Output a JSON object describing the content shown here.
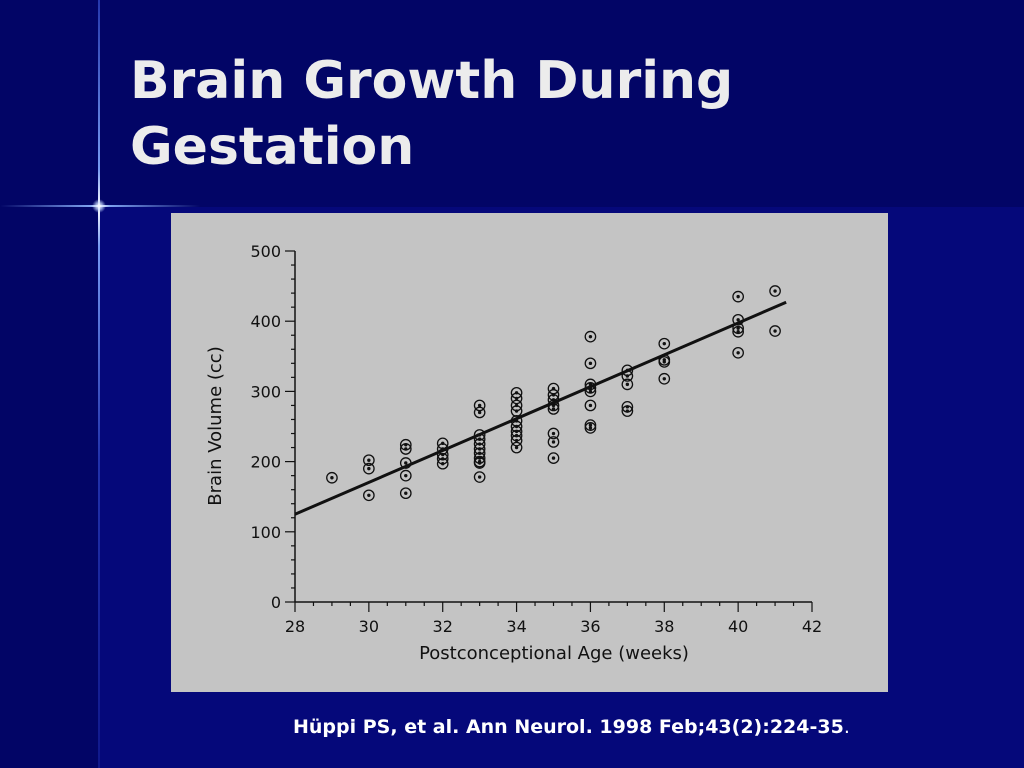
{
  "slide": {
    "title_line1": "Brain Growth During",
    "title_line2": "Gestation",
    "citation": "Hüppi PS, et al. Ann Neurol. 1998 Feb;43(2):224-35",
    "citation_end": "."
  },
  "colors": {
    "background": "#05087a",
    "background_dark": "#020566",
    "figure_background": "#c4c4c4",
    "title_text": "#ececec",
    "ink": "#111111"
  },
  "chart_data": {
    "type": "scatter",
    "title": "",
    "xlabel": "Postconceptional Age (weeks)",
    "ylabel": "Brain Volume (cc)",
    "xlim": [
      28,
      42
    ],
    "ylim": [
      0,
      500
    ],
    "xticks": [
      28,
      30,
      32,
      34,
      36,
      38,
      40,
      42
    ],
    "yticks": [
      0,
      100,
      200,
      300,
      400,
      500
    ],
    "grid": false,
    "legend": "none",
    "points": [
      [
        29,
        177
      ],
      [
        30,
        202
      ],
      [
        30,
        190
      ],
      [
        30,
        152
      ],
      [
        31,
        224
      ],
      [
        31,
        218
      ],
      [
        31,
        198
      ],
      [
        31,
        180
      ],
      [
        31,
        155
      ],
      [
        32,
        226
      ],
      [
        32,
        218
      ],
      [
        32,
        210
      ],
      [
        32,
        204
      ],
      [
        32,
        197
      ],
      [
        33,
        280
      ],
      [
        33,
        270
      ],
      [
        33,
        238
      ],
      [
        33,
        232
      ],
      [
        33,
        225
      ],
      [
        33,
        218
      ],
      [
        33,
        212
      ],
      [
        33,
        205
      ],
      [
        33,
        200
      ],
      [
        33,
        198
      ],
      [
        33,
        178
      ],
      [
        34,
        298
      ],
      [
        34,
        290
      ],
      [
        34,
        280
      ],
      [
        34,
        272
      ],
      [
        34,
        258
      ],
      [
        34,
        250
      ],
      [
        34,
        243
      ],
      [
        34,
        237
      ],
      [
        34,
        230
      ],
      [
        34,
        220
      ],
      [
        35,
        304
      ],
      [
        35,
        295
      ],
      [
        35,
        288
      ],
      [
        35,
        280
      ],
      [
        35,
        275
      ],
      [
        35,
        240
      ],
      [
        35,
        228
      ],
      [
        35,
        205
      ],
      [
        36,
        378
      ],
      [
        36,
        340
      ],
      [
        36,
        310
      ],
      [
        36,
        305
      ],
      [
        36,
        300
      ],
      [
        36,
        280
      ],
      [
        36,
        252
      ],
      [
        36,
        248
      ],
      [
        37,
        330
      ],
      [
        37,
        322
      ],
      [
        37,
        310
      ],
      [
        37,
        278
      ],
      [
        37,
        272
      ],
      [
        38,
        368
      ],
      [
        38,
        345
      ],
      [
        38,
        342
      ],
      [
        38,
        318
      ],
      [
        40,
        435
      ],
      [
        40,
        402
      ],
      [
        40,
        390
      ],
      [
        40,
        385
      ],
      [
        40,
        355
      ],
      [
        41,
        443
      ],
      [
        41,
        386
      ]
    ],
    "regression": {
      "x": [
        28,
        41.3
      ],
      "y": [
        125,
        427
      ]
    },
    "marker": "circled-dot",
    "line_color": "#111111"
  }
}
